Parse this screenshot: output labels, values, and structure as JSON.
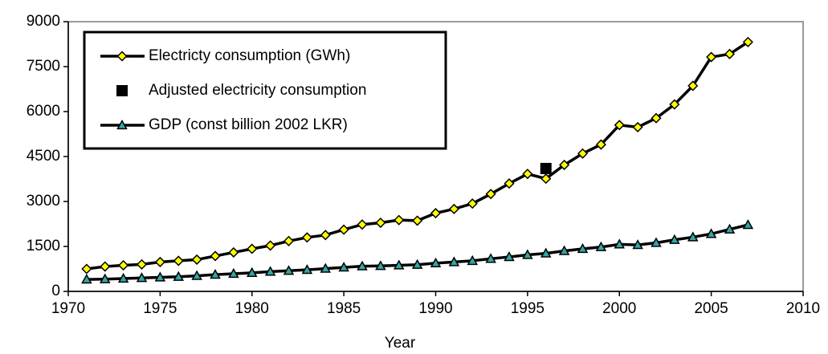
{
  "chart_data": {
    "type": "line",
    "x_label": "Year",
    "x": [
      1971,
      1972,
      1973,
      1974,
      1975,
      1976,
      1977,
      1978,
      1979,
      1980,
      1981,
      1982,
      1983,
      1984,
      1985,
      1986,
      1987,
      1988,
      1989,
      1990,
      1991,
      1992,
      1993,
      1994,
      1995,
      1996,
      1997,
      1998,
      1999,
      2000,
      2001,
      2002,
      2003,
      2004,
      2005,
      2006,
      2007
    ],
    "series": [
      {
        "name": "Electricty consumption (GWh)",
        "color": "#ffff00",
        "marker": "diamond",
        "line": true,
        "values": [
          750,
          830,
          870,
          900,
          980,
          1020,
          1060,
          1180,
          1300,
          1420,
          1530,
          1680,
          1800,
          1880,
          2060,
          2230,
          2290,
          2380,
          2360,
          2610,
          2750,
          2930,
          3250,
          3600,
          3920,
          3760,
          4220,
          4600,
          4900,
          5550,
          5480,
          5780,
          6240,
          6860,
          7820,
          7920,
          8320
        ]
      },
      {
        "name": "Adjusted electricity consumption",
        "color": "#000000",
        "marker": "square",
        "line": false,
        "values": [
          null,
          null,
          null,
          null,
          null,
          null,
          null,
          null,
          null,
          null,
          null,
          null,
          null,
          null,
          null,
          null,
          null,
          null,
          null,
          null,
          null,
          null,
          null,
          null,
          null,
          4100,
          null,
          null,
          null,
          null,
          null,
          null,
          null,
          null,
          null,
          null,
          null
        ]
      },
      {
        "name": "GDP (const billion 2002 LKR)",
        "color": "#33a6a6",
        "marker": "triangle",
        "line": true,
        "values": [
          400,
          410,
          430,
          450,
          470,
          490,
          520,
          560,
          590,
          620,
          660,
          690,
          720,
          760,
          800,
          840,
          850,
          870,
          890,
          940,
          980,
          1020,
          1090,
          1150,
          1220,
          1270,
          1350,
          1420,
          1480,
          1570,
          1550,
          1620,
          1720,
          1810,
          1920,
          2070,
          2220
        ]
      }
    ],
    "xlim": [
      1970,
      2010
    ],
    "xticks": [
      1970,
      1975,
      1980,
      1985,
      1990,
      1995,
      2000,
      2005,
      2010
    ],
    "ylim": [
      0,
      9000
    ],
    "yticks": [
      0,
      1500,
      3000,
      4500,
      6000,
      7500,
      9000
    ],
    "legend": "top-left"
  }
}
